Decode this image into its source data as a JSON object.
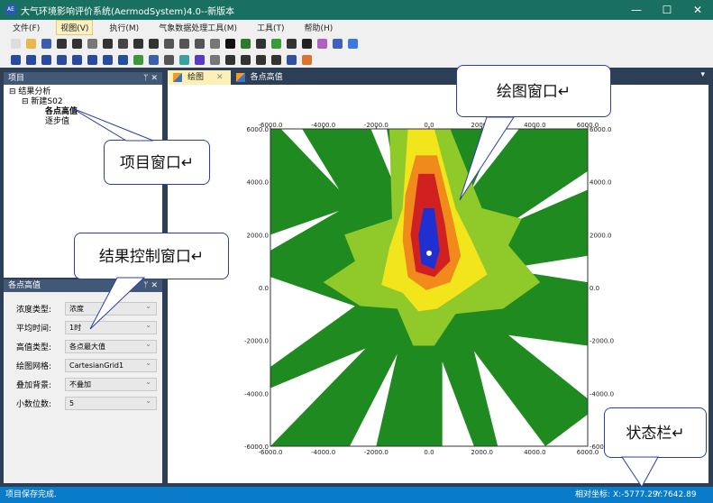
{
  "window": {
    "title": "大气环境影响评价系统(AermodSystem)4.0--新版本",
    "minimize": "—",
    "maximize": "☐",
    "close": "✕",
    "app_icon": "AE"
  },
  "menu": [
    "文件(F)",
    "视图(V)",
    "执行(M)",
    "气象数据处理工具(M)",
    "工具(T)",
    "帮助(H)"
  ],
  "project_panel": {
    "title": "项目",
    "pin": "ᛘ",
    "close": "✕",
    "tree": [
      {
        "label": "结果分析",
        "level": 0,
        "toggle": "⊟"
      },
      {
        "label": "新建S02",
        "level": 1,
        "toggle": "⊟"
      },
      {
        "label": "各点高值",
        "level": 2,
        "bold": true
      },
      {
        "label": "逐步值",
        "level": 2
      }
    ]
  },
  "result_panel": {
    "title": "各点高值",
    "pin": "ᛘ",
    "close": "✕",
    "fields": [
      {
        "label": "浓度类型:",
        "value": "浓度"
      },
      {
        "label": "平均时间:",
        "value": "1时"
      },
      {
        "label": "高值类型:",
        "value": "各点最大值"
      },
      {
        "label": "绘图网格:",
        "value": "CartesianGrid1"
      },
      {
        "label": "叠加背景:",
        "value": "不叠加"
      },
      {
        "label": "小数位数:",
        "value": "5"
      }
    ]
  },
  "tabs": [
    {
      "label": "绘图",
      "selected": true,
      "close": "✕"
    },
    {
      "label": "各点高值",
      "selected": false
    }
  ],
  "tab_dropdown": "▾",
  "chart_data": {
    "type": "heatmap",
    "x_ticks": [
      "-6000.0",
      "-4000.0",
      "-2000.0",
      "0.0",
      "2000.0",
      "4000.0",
      "6000.0"
    ],
    "y_ticks": [
      "6000.0",
      "4000.0",
      "2000.0",
      "0.0",
      "-2000.0",
      "-4000.0",
      "-6000.0"
    ],
    "xlim": [
      -6000,
      6000
    ],
    "ylim": [
      -6000,
      6000
    ],
    "colors": {
      "background": "#1f8a1f",
      "low": "#8fc92a",
      "mid": "#f2e51c",
      "high": "#f08a1a",
      "peak": "#d02020",
      "max": "#2030d0"
    }
  },
  "callouts": {
    "plot": "绘图窗口↵",
    "project": "项目窗口↵",
    "result": "结果控制窗口↵",
    "status": "状态栏↵"
  },
  "status": {
    "message": "项目保存完成.",
    "coord_label": "相对坐标:",
    "x": "X:-5777.29",
    "y": "Y:7642.89"
  }
}
